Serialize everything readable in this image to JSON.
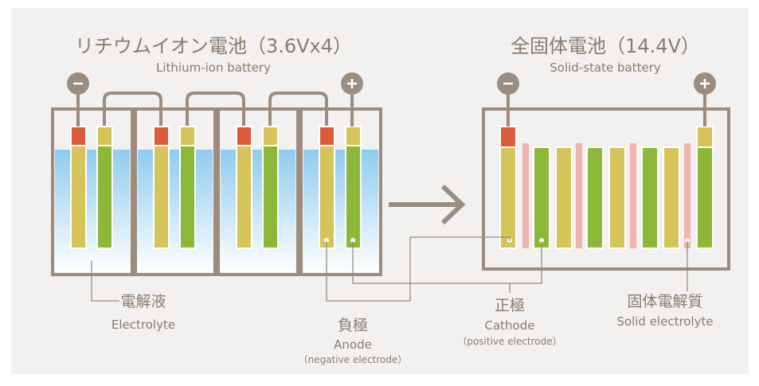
{
  "left": {
    "title": "リチウムイオン電池（3.6Vx4）",
    "subtitle": "Lithium-ion battery"
  },
  "right": {
    "title": "全固体電池（14.4V）",
    "subtitle": "Solid-state battery"
  },
  "labels": [
    {
      "ja": "電解液",
      "en": "Electrolyte"
    },
    {
      "ja": "負極",
      "en": "Anode",
      "note": "（negative electrode）"
    },
    {
      "ja": "正極",
      "en": "Cathode",
      "note": "（positive electrode）"
    },
    {
      "ja": "固体電解質",
      "en": "Solid electrolyte"
    }
  ]
}
